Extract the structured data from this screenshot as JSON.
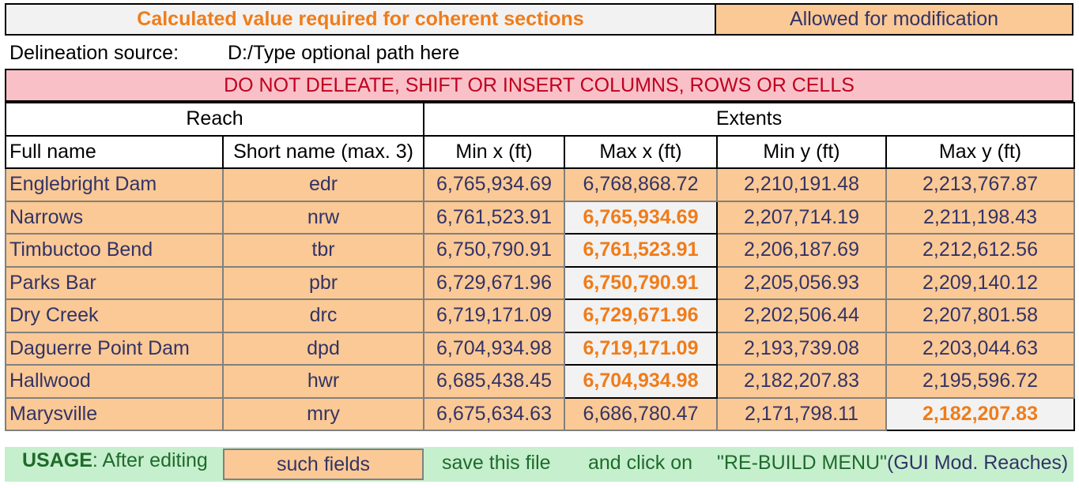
{
  "legend": {
    "calculated": "Calculated value required for coherent sections",
    "allowed": "Allowed for modification"
  },
  "source": {
    "label": "Delineation source:",
    "path": "D:/Type optional path here"
  },
  "warning": "DO NOT DELEATE, SHIFT OR INSERT COLUMNS, ROWS OR CELLS",
  "groups": {
    "reach": "Reach",
    "extents": "Extents"
  },
  "columns": [
    "Full name",
    "Short name (max. 3)",
    "Min x (ft)",
    "Max x (ft)",
    "Min y (ft)",
    "Max y (ft)"
  ],
  "rows": [
    {
      "full": "Englebright Dam",
      "short": "edr",
      "minx": "6,765,934.69",
      "maxx": "6,768,868.72",
      "miny": "2,210,191.48",
      "maxy": "2,213,767.87"
    },
    {
      "full": "Narrows",
      "short": "nrw",
      "minx": "6,761,523.91",
      "maxx": "6,765,934.69",
      "miny": "2,207,714.19",
      "maxy": "2,211,198.43"
    },
    {
      "full": "Timbuctoo Bend",
      "short": "tbr",
      "minx": "6,750,790.91",
      "maxx": "6,761,523.91",
      "miny": "2,206,187.69",
      "maxy": "2,212,612.56"
    },
    {
      "full": "Parks Bar",
      "short": "pbr",
      "minx": "6,729,671.96",
      "maxx": "6,750,790.91",
      "miny": "2,205,056.93",
      "maxy": "2,209,140.12"
    },
    {
      "full": "Dry Creek",
      "short": "drc",
      "minx": "6,719,171.09",
      "maxx": "6,729,671.96",
      "miny": "2,202,506.44",
      "maxy": "2,207,801.58"
    },
    {
      "full": "Daguerre Point Dam",
      "short": "dpd",
      "minx": "6,704,934.98",
      "maxx": "6,719,171.09",
      "miny": "2,193,739.08",
      "maxy": "2,203,044.63"
    },
    {
      "full": "Hallwood",
      "short": "hwr",
      "minx": "6,685,438.45",
      "maxx": "6,704,934.98",
      "miny": "2,182,207.83",
      "maxy": "2,195,596.72"
    },
    {
      "full": "Marysville",
      "short": "mry",
      "minx": "6,675,634.63",
      "maxx": "6,686,780.47",
      "miny": "2,171,798.11",
      "maxy": "2,182,207.83"
    }
  ],
  "usage": {
    "label": "USAGE",
    "after": ": After editing",
    "field": "such fields",
    "save": "save this file",
    "click": "and click on",
    "rebuild": "\"RE-BUILD MENU\"",
    "gui": "(GUI Mod. Reaches)"
  },
  "colors": {
    "calculated_bg": "#f2f2f2",
    "calculated_text": "#f07c1a",
    "allowed_bg": "#fac995",
    "warning_bg": "#f9c0c8",
    "warning_text": "#c0001e",
    "usage_bg": "#c6efce"
  }
}
